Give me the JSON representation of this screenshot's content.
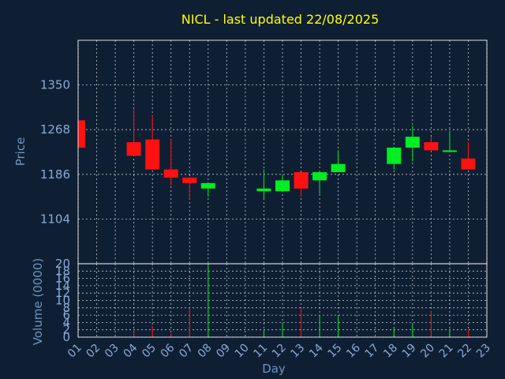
{
  "chart_data": {
    "type": "candlestick",
    "title": "NICL - last updated 22/08/2025",
    "xlabel": "Day",
    "ylabel": "Price",
    "volume_label": "Volume (0000)",
    "days": [
      "01",
      "02",
      "03",
      "04",
      "05",
      "06",
      "07",
      "08",
      "09",
      "10",
      "11",
      "12",
      "13",
      "14",
      "15",
      "16",
      "17",
      "18",
      "19",
      "20",
      "21",
      "22",
      "23"
    ],
    "price_ticks": [
      1104,
      1186,
      1268,
      1350
    ],
    "price_range": [
      1022,
      1432
    ],
    "volume_ticks": [
      0,
      2,
      4,
      6,
      8,
      10,
      12,
      14,
      16,
      18,
      20
    ],
    "volume_range": [
      0,
      20
    ],
    "candles": [
      {
        "day": "01",
        "open": 1285,
        "close": 1235,
        "high": 1285,
        "low": 1235
      },
      {
        "day": "04",
        "open": 1245,
        "close": 1220,
        "high": 1305,
        "low": 1220
      },
      {
        "day": "05",
        "open": 1250,
        "close": 1195,
        "high": 1295,
        "low": 1195
      },
      {
        "day": "06",
        "open": 1195,
        "close": 1180,
        "high": 1250,
        "low": 1165
      },
      {
        "day": "07",
        "open": 1180,
        "close": 1170,
        "high": 1180,
        "low": 1140
      },
      {
        "day": "08",
        "open": 1160,
        "close": 1170,
        "high": 1170,
        "low": 1145
      },
      {
        "day": "11",
        "open": 1155,
        "close": 1160,
        "high": 1195,
        "low": 1140
      },
      {
        "day": "12",
        "open": 1155,
        "close": 1175,
        "high": 1185,
        "low": 1155
      },
      {
        "day": "13",
        "open": 1190,
        "close": 1160,
        "high": 1190,
        "low": 1145
      },
      {
        "day": "14",
        "open": 1175,
        "close": 1190,
        "high": 1190,
        "low": 1150
      },
      {
        "day": "15",
        "open": 1190,
        "close": 1205,
        "high": 1230,
        "low": 1190
      },
      {
        "day": "18",
        "open": 1205,
        "close": 1235,
        "high": 1235,
        "low": 1195
      },
      {
        "day": "19",
        "open": 1235,
        "close": 1255,
        "high": 1275,
        "low": 1210
      },
      {
        "day": "20",
        "open": 1245,
        "close": 1230,
        "high": 1255,
        "low": 1230
      },
      {
        "day": "21",
        "open": 1228,
        "close": 1230,
        "high": 1265,
        "low": 1228
      },
      {
        "day": "22",
        "open": 1215,
        "close": 1195,
        "high": 1245,
        "low": 1195
      }
    ],
    "volumes": [
      {
        "day": "04",
        "value": 2,
        "direction": "down"
      },
      {
        "day": "05",
        "value": 3,
        "direction": "down"
      },
      {
        "day": "06",
        "value": 1,
        "direction": "down"
      },
      {
        "day": "07",
        "value": 8,
        "direction": "down"
      },
      {
        "day": "08",
        "value": 20,
        "direction": "up"
      },
      {
        "day": "11",
        "value": 2,
        "direction": "up"
      },
      {
        "day": "12",
        "value": 4,
        "direction": "up"
      },
      {
        "day": "13",
        "value": 8,
        "direction": "down"
      },
      {
        "day": "14",
        "value": 6,
        "direction": "up"
      },
      {
        "day": "15",
        "value": 6,
        "direction": "up"
      },
      {
        "day": "18",
        "value": 2.5,
        "direction": "up"
      },
      {
        "day": "19",
        "value": 3.5,
        "direction": "up"
      },
      {
        "day": "20",
        "value": 7,
        "direction": "down"
      },
      {
        "day": "21",
        "value": 2,
        "direction": "up"
      },
      {
        "day": "22",
        "value": 2,
        "direction": "down"
      }
    ],
    "colors": {
      "background": "#0f1f33",
      "up": "#00ee22",
      "down": "#ff1111",
      "title": "#ffff00",
      "axis_text": "#8aaad6",
      "grid": "#ffffff"
    },
    "grid": true
  }
}
